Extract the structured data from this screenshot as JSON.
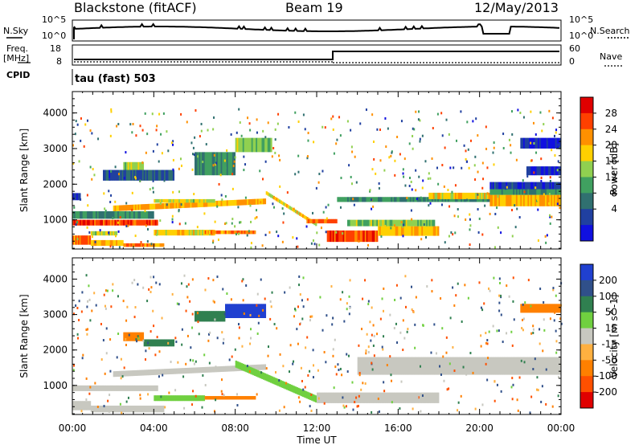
{
  "header": {
    "title": "Blackstone (fitACF)",
    "beam": "Beam 19",
    "date": "12/May/2013"
  },
  "top_panels": {
    "nsky_label": "N.Sky",
    "nsky_ticks": [
      "10^5",
      "10^0"
    ],
    "nsearch_label": "N.Search",
    "nsearch_ticks": [
      "10^5",
      "10^0"
    ],
    "freq_label_1": "Freq.",
    "freq_label_2": "[MHz]",
    "freq_ticks": [
      "18",
      "8"
    ],
    "nave_label": "Nave",
    "nave_ticks": [
      "60",
      "0"
    ],
    "cpid_label": "CPID",
    "mode_text": "tau (fast) 503"
  },
  "chart_data": [
    {
      "type": "heatmap",
      "name": "power",
      "ylabel": "Slant Range [km]",
      "yticks": [
        1000,
        2000,
        3000,
        4000
      ],
      "ylim": [
        180,
        4600
      ],
      "xlim": [
        0,
        24
      ],
      "xticks": [
        "00:00",
        "04:00",
        "08:00",
        "12:00",
        "16:00",
        "20:00",
        "00:00"
      ],
      "colorbar": {
        "label": "Power [dB]",
        "ticks": [
          "28",
          "24",
          "20",
          "16",
          "12",
          "8",
          "4"
        ],
        "colors": [
          "#e00000",
          "#ff4000",
          "#ff9000",
          "#ffd000",
          "#90d050",
          "#40a060",
          "#307070",
          "#2040a0",
          "#1010e0"
        ]
      },
      "bands": [
        {
          "t0": 0.0,
          "t1": 1.5,
          "r0": 840,
          "r1": 1000,
          "v": 28
        },
        {
          "t0": 1.5,
          "t1": 4.2,
          "r0": 840,
          "r1": 1000,
          "v": 27
        },
        {
          "t0": 0.0,
          "t1": 0.9,
          "r0": 300,
          "r1": 560,
          "v": 24
        },
        {
          "t0": 0.9,
          "t1": 2.5,
          "r0": 270,
          "r1": 430,
          "v": 22
        },
        {
          "t0": 2.5,
          "t1": 4.5,
          "r0": 240,
          "r1": 340,
          "v": 24
        },
        {
          "t0": 0.9,
          "t1": 2.2,
          "r0": 560,
          "r1": 680,
          "v": 18
        },
        {
          "t0": 0.0,
          "t1": 0.4,
          "r0": 1550,
          "r1": 1750,
          "v": 6
        },
        {
          "t0": 2.0,
          "t1": 9.5,
          "r0": 1240,
          "r1": 1400,
          "v": 22,
          "tr": 200
        },
        {
          "t0": 4.0,
          "t1": 7.0,
          "r0": 1480,
          "r1": 1580,
          "v": 18
        },
        {
          "t0": 4.0,
          "t1": 7.0,
          "r0": 560,
          "r1": 720,
          "v": 20
        },
        {
          "t0": 6.5,
          "t1": 9.0,
          "r0": 600,
          "r1": 700,
          "v": 24
        },
        {
          "t0": 9.5,
          "t1": 12.0,
          "r0": 1700,
          "r1": 1800,
          "v": 20,
          "tr": -900
        },
        {
          "t0": 11.5,
          "t1": 13.0,
          "r0": 900,
          "r1": 1020,
          "v": 26
        },
        {
          "t0": 12.5,
          "t1": 15.0,
          "r0": 380,
          "r1": 700,
          "v": 26
        },
        {
          "t0": 15.0,
          "t1": 18.0,
          "r0": 550,
          "r1": 820,
          "v": 22
        },
        {
          "t0": 13.5,
          "t1": 17.8,
          "r0": 820,
          "r1": 1000,
          "v": 16
        },
        {
          "t0": 13.0,
          "t1": 20.5,
          "r0": 1500,
          "r1": 1640,
          "v": 12
        },
        {
          "t0": 17.5,
          "t1": 20.5,
          "r0": 1580,
          "r1": 1760,
          "v": 20
        },
        {
          "t0": 20.5,
          "t1": 24.0,
          "r0": 1380,
          "r1": 1700,
          "v": 22
        },
        {
          "t0": 20.5,
          "t1": 24.0,
          "r0": 1700,
          "r1": 1860,
          "v": 12
        },
        {
          "t0": 20.5,
          "t1": 24.0,
          "r0": 1860,
          "r1": 2060,
          "v": 6
        },
        {
          "t0": 2.5,
          "t1": 3.5,
          "r0": 2250,
          "r1": 2620,
          "v": 18
        },
        {
          "t0": 6.0,
          "t1": 8.0,
          "r0": 2250,
          "r1": 2900,
          "v": 12
        },
        {
          "t0": 8.0,
          "t1": 9.8,
          "r0": 2900,
          "r1": 3300,
          "v": 16
        },
        {
          "t0": 1.5,
          "t1": 5.0,
          "r0": 2100,
          "r1": 2400,
          "v": 8
        },
        {
          "t0": 22.0,
          "t1": 24.0,
          "r0": 3000,
          "r1": 3300,
          "v": 5
        },
        {
          "t0": 22.3,
          "t1": 24.0,
          "r0": 2250,
          "r1": 2500,
          "v": 5
        },
        {
          "t0": 0.0,
          "t1": 4.0,
          "r0": 1030,
          "r1": 1240,
          "v": 12
        }
      ]
    },
    {
      "type": "heatmap",
      "name": "velocity",
      "ylabel": "Slant Range [km]",
      "yticks": [
        1000,
        2000,
        3000,
        4000
      ],
      "ylim": [
        180,
        4600
      ],
      "xlim": [
        0,
        24
      ],
      "xticks": [
        "00:00",
        "04:00",
        "08:00",
        "12:00",
        "16:00",
        "20:00",
        "00:00"
      ],
      "xlabel": "Time UT",
      "colorbar": {
        "label": "Velocity [m s^-1]",
        "ticks": [
          "200",
          "100",
          "50",
          "15",
          "-15",
          "-50",
          "-100",
          "-200"
        ],
        "colors": [
          "#2040d0",
          "#30508a",
          "#308050",
          "#70d040",
          "#c8c8c0",
          "#ffb040",
          "#ff8000",
          "#ff5000",
          "#e00000"
        ]
      },
      "bands": [
        {
          "t0": 0.0,
          "t1": 4.2,
          "r0": 840,
          "r1": 1000,
          "v": 0
        },
        {
          "t0": 0.0,
          "t1": 0.9,
          "r0": 300,
          "r1": 560,
          "v": 0
        },
        {
          "t0": 0.9,
          "t1": 4.5,
          "r0": 240,
          "r1": 430,
          "v": 0
        },
        {
          "t0": 2.0,
          "t1": 9.5,
          "r0": 1240,
          "r1": 1400,
          "v": 0,
          "tr": 200
        },
        {
          "t0": 4.0,
          "t1": 6.5,
          "r0": 560,
          "r1": 720,
          "v": 30
        },
        {
          "t0": 6.5,
          "t1": 9.0,
          "r0": 600,
          "r1": 700,
          "v": -80
        },
        {
          "t0": 8.0,
          "t1": 12.0,
          "r0": 1500,
          "r1": 1700,
          "v": 30,
          "tr": -1000
        },
        {
          "t0": 12.0,
          "t1": 18.0,
          "r0": 500,
          "r1": 800,
          "v": 0
        },
        {
          "t0": 14.0,
          "t1": 24.0,
          "r0": 1300,
          "r1": 1800,
          "v": 0
        },
        {
          "t0": 7.5,
          "t1": 9.5,
          "r0": 2900,
          "r1": 3300,
          "v": 180
        },
        {
          "t0": 6.0,
          "t1": 7.5,
          "r0": 2800,
          "r1": 3100,
          "v": 60
        },
        {
          "t0": 2.5,
          "t1": 3.5,
          "r0": 2250,
          "r1": 2500,
          "v": -60
        },
        {
          "t0": 3.5,
          "t1": 5.0,
          "r0": 2100,
          "r1": 2300,
          "v": 60
        },
        {
          "t0": 22.0,
          "t1": 24.0,
          "r0": 3050,
          "r1": 3300,
          "v": -60
        }
      ]
    }
  ],
  "xlabel_text": "Time UT"
}
